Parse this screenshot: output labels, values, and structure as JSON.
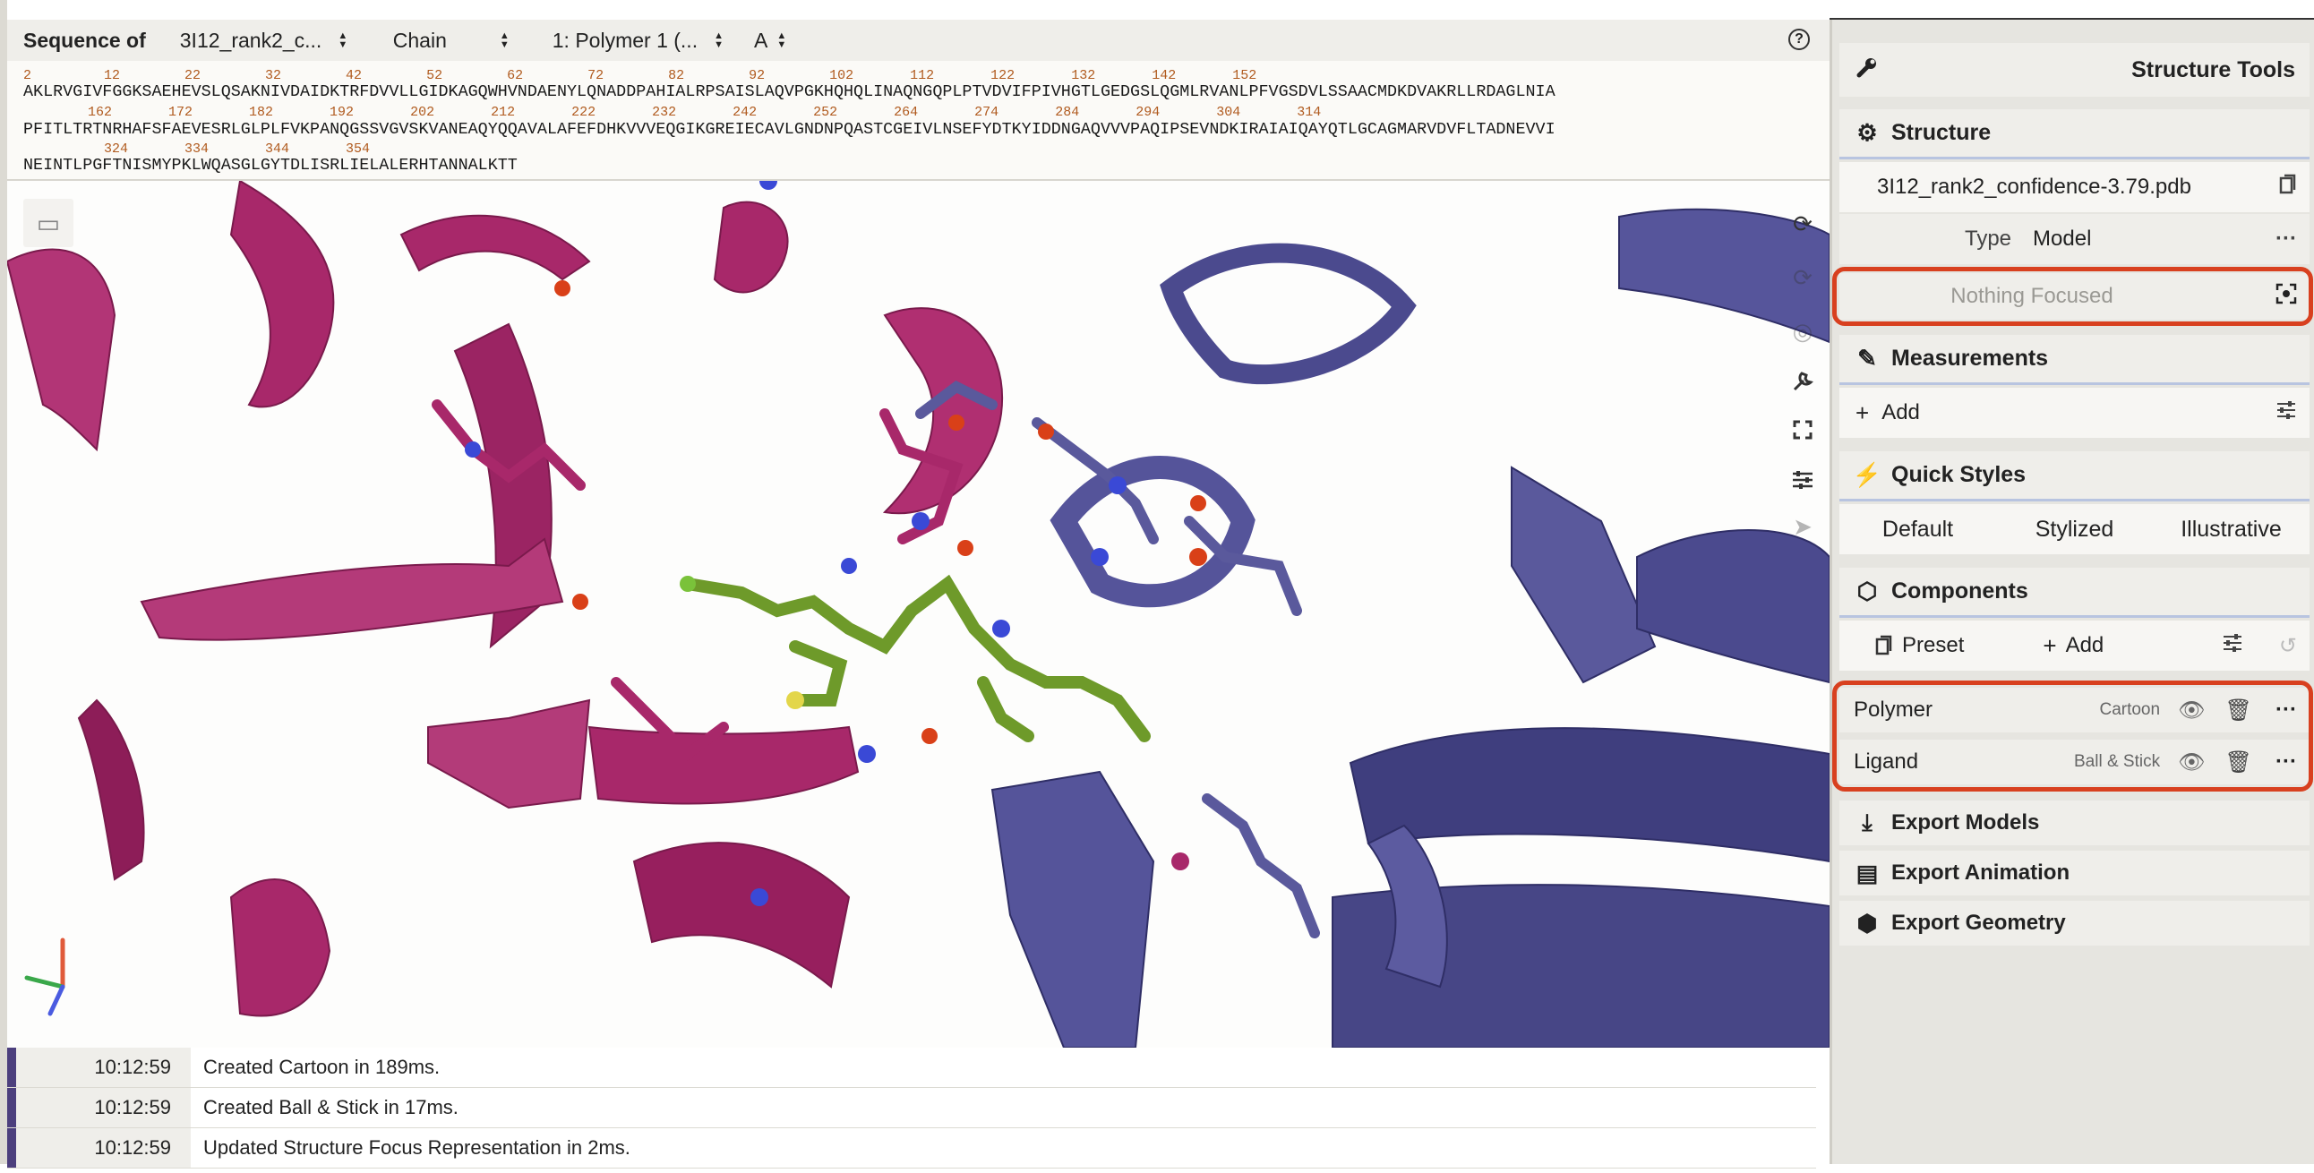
{
  "sequence_panel": {
    "label": "Sequence of",
    "structure_select": "3I12_rank2_c...",
    "mode_select": "Chain",
    "polymer_select": "1: Polymer 1 (...",
    "chain_select": "A",
    "help_icon": "?",
    "lines": [
      {
        "numbers": "2         12        22        32        42        52        62        72        82        92        102       112       122       132       142       152",
        "residues": "AKLRVGIVFGGKSAEHEVSLQSAKNIVDAIDKTRFDVVLLGIDKAGQWHVNDAENYLQNADDPAHIALRPSAISLAQVPGKHQHQLINAQNGQPLPTVDVIFPIVHGTLGEDGSLQGMLRVANLPFVGSDVLSSAACMDKDVAKRLLRDAGLNIA"
      },
      {
        "numbers": "        162       172       182       192       202       212       222       232       242       252       264       274       284       294       304       314",
        "residues": "PFITLTRTNRHAFSFAEVESRLGLPLFVKPANQGSSVGVSKVANEAQYQQAVALAFEFDHKVVVEQGIKGREIECAVLGNDNPQASTCGEIVLNSEFYDTKYIDDNGAQVVVPAQIPSEVNDKIRAIAIQAYQTLGCAGMARVDVFLTADNEVVI"
      },
      {
        "numbers": "          324       334       344       354",
        "residues": "NEINTLPGFTNISMYPKLWQASGLGYTDLISRLIELALERHTANNALKTT"
      }
    ]
  },
  "viewport": {
    "left_button_icon": "screenshot-icon",
    "tools": [
      "reset-camera-icon",
      "spin-icon",
      "projection-icon",
      "tools-wrench-icon",
      "fullscreen-icon",
      "settings-sliders-icon",
      "selection-mode-icon"
    ]
  },
  "log": [
    {
      "time": "10:12:59",
      "message": "Created Cartoon in 189ms."
    },
    {
      "time": "10:12:59",
      "message": "Created Ball & Stick in 17ms."
    },
    {
      "time": "10:12:59",
      "message": "Updated Structure Focus Representation in 2ms."
    }
  ],
  "panel": {
    "title": "Structure Tools",
    "structure": {
      "header": "Structure",
      "file": "3I12_rank2_confidence-3.79.pdb",
      "type_label": "Type",
      "type_value": "Model",
      "focus": "Nothing Focused"
    },
    "measurements": {
      "header": "Measurements",
      "add": "Add"
    },
    "quick_styles": {
      "header": "Quick Styles",
      "options": [
        "Default",
        "Stylized",
        "Illustrative"
      ]
    },
    "components": {
      "header": "Components",
      "preset": "Preset",
      "add": "Add",
      "items": [
        {
          "name": "Polymer",
          "repr": "Cartoon"
        },
        {
          "name": "Ligand",
          "repr": "Ball & Stick"
        }
      ]
    },
    "export_models": "Export Models",
    "export_animation": "Export Animation",
    "export_geometry": "Export Geometry"
  },
  "colors": {
    "chain_a": "#a8286a",
    "chain_b": "#4b4a8e",
    "ligand": "#6e9a2a",
    "highlight": "#d8401f"
  }
}
